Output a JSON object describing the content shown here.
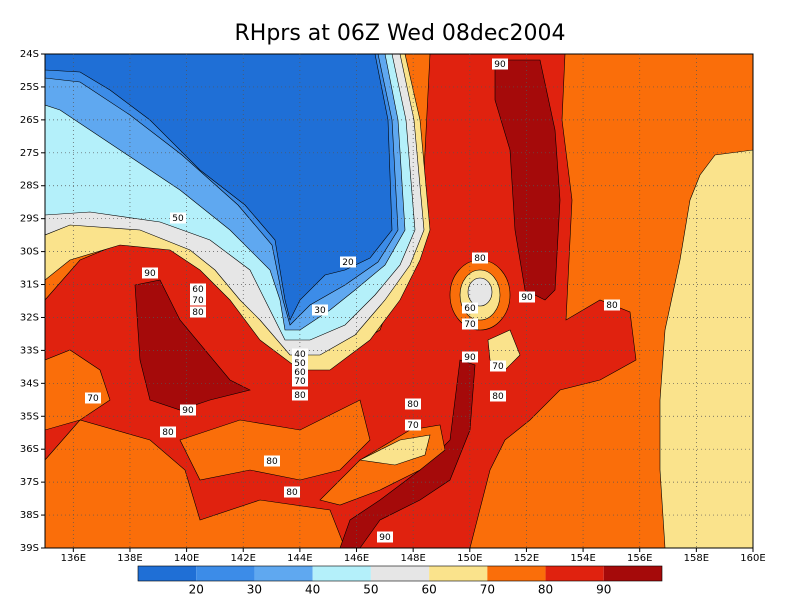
{
  "title": "RHprs at 06Z Wed 08dec2004",
  "lat_labels": [
    "24S",
    "25S",
    "26S",
    "27S",
    "28S",
    "29S",
    "30S",
    "31S",
    "32S",
    "33S",
    "34S",
    "35S",
    "36S",
    "37S",
    "38S",
    "39S"
  ],
  "lon_labels": [
    "136E",
    "138E",
    "140E",
    "142E",
    "144E",
    "146E",
    "148E",
    "150E",
    "152E",
    "154E",
    "156E",
    "158E",
    "160E"
  ],
  "contour_labels": [
    "50",
    "20",
    "30",
    "90",
    "60",
    "70",
    "80",
    "40",
    "50",
    "60",
    "70",
    "80",
    "70",
    "90",
    "80",
    "80",
    "80",
    "80",
    "70",
    "90",
    "90",
    "70",
    "80",
    "80",
    "60",
    "70",
    "90",
    "80",
    "90"
  ],
  "colorbar": {
    "colors": [
      "#1f6fd6",
      "#3c8ce8",
      "#5fa8f0",
      "#b4f0fa",
      "#e6e6e6",
      "#fae38c",
      "#fa6e0a",
      "#e0220f",
      "#a50a0a"
    ],
    "labels": [
      "20",
      "30",
      "40",
      "50",
      "60",
      "70",
      "80",
      "90"
    ]
  }
}
